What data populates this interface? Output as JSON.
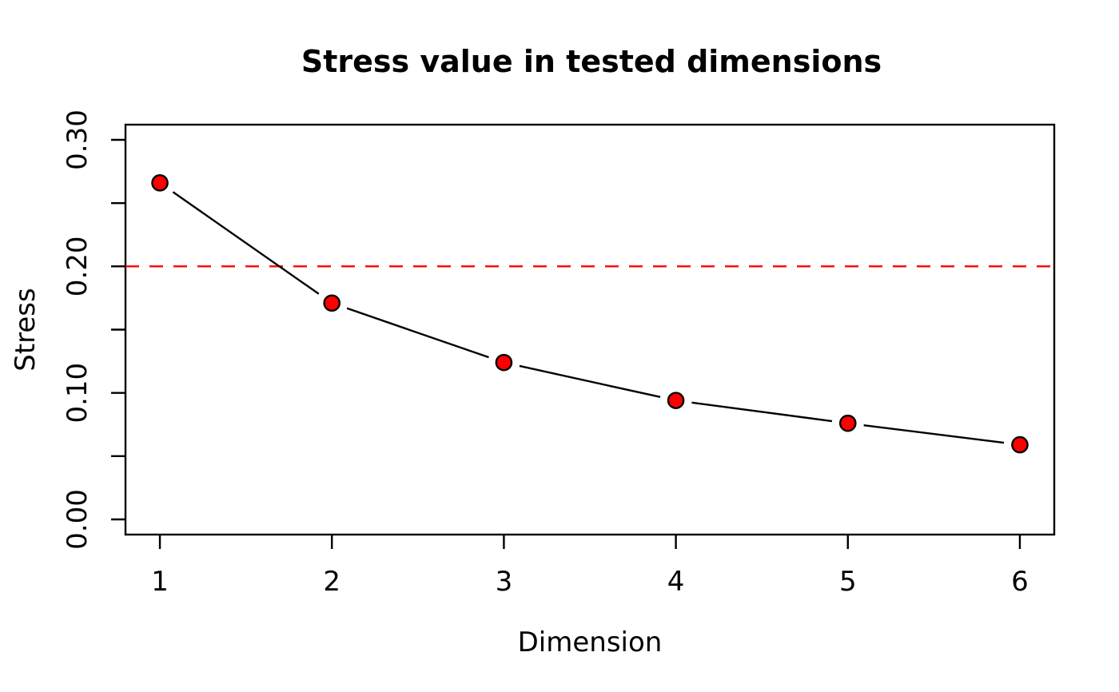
{
  "chart_data": {
    "type": "line",
    "title": "Stress value in tested dimensions",
    "xlabel": "Dimension",
    "ylabel": "Stress",
    "x": [
      1,
      2,
      3,
      4,
      5,
      6
    ],
    "values": [
      0.266,
      0.171,
      0.124,
      0.094,
      0.076,
      0.059
    ],
    "xlim": [
      0.8,
      6.2
    ],
    "ylim": [
      -0.012,
      0.312
    ],
    "x_ticks": [
      {
        "value": 1,
        "label": "1"
      },
      {
        "value": 2,
        "label": "2"
      },
      {
        "value": 3,
        "label": "3"
      },
      {
        "value": 4,
        "label": "4"
      },
      {
        "value": 5,
        "label": "5"
      },
      {
        "value": 6,
        "label": "6"
      }
    ],
    "y_ticks": [
      {
        "value": 0.0,
        "label": "0.00"
      },
      {
        "value": 0.05,
        "label": ""
      },
      {
        "value": 0.1,
        "label": "0.10"
      },
      {
        "value": 0.15,
        "label": ""
      },
      {
        "value": 0.2,
        "label": "0.20"
      },
      {
        "value": 0.25,
        "label": ""
      },
      {
        "value": 0.3,
        "label": "0.30"
      }
    ],
    "reference_line": {
      "value": 0.2,
      "style": "dashed",
      "color": "#ff0000"
    },
    "style": {
      "marker": "circle",
      "point_fill": "#ff0000",
      "point_edge": "#000000",
      "line_color": "#000000",
      "background": "#ffffff",
      "grid": false,
      "legend": null,
      "plot_type": "points-joined-by-segments-with-gaps"
    }
  }
}
